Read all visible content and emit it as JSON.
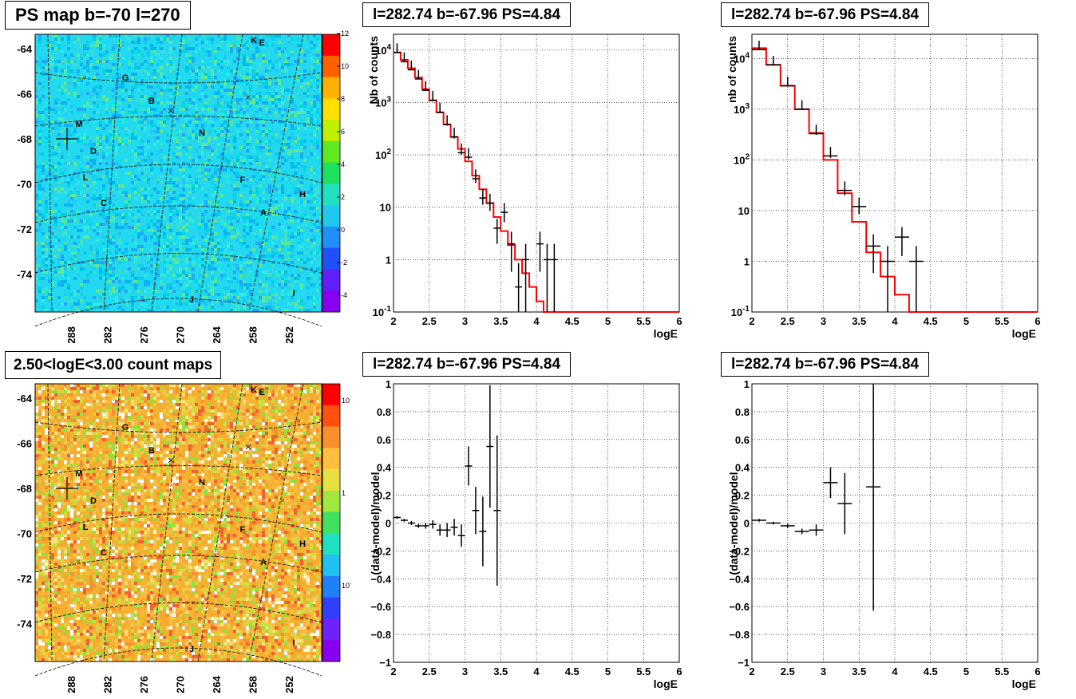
{
  "pads": {
    "map1_title": "PS map b=-70 l=270",
    "map2_title": "2.50<logE<3.00 count maps",
    "spec1_title": "l=282.74 b=-67.96 PS=4.84",
    "spec2_title": "l=282.74 b=-67.96 PS=4.84",
    "res1_title": "l=282.74 b=-67.96 PS=4.84",
    "res2_title": "l=282.74 b=-67.96 PS=4.84"
  },
  "maps": {
    "y_ticks": [
      "-64",
      "-66",
      "-68",
      "-70",
      "-72",
      "-74"
    ],
    "x_ticks": [
      "288",
      "282",
      "276",
      "270",
      "264",
      "258",
      "252"
    ],
    "markers": [
      "K",
      "E",
      "G",
      "B",
      "M",
      "N",
      "D",
      "L",
      "F",
      "H",
      "C",
      "A",
      "J",
      "I"
    ],
    "palette1_labels": [
      "12",
      "10",
      "8",
      "6",
      "4",
      "2",
      "0",
      "-2",
      "-4"
    ],
    "palette2_labels": [
      "10",
      "1",
      "10",
      "-1"
    ],
    "colors": {
      "map1_base": "#33e0f0",
      "map2_base": "#f5b030"
    }
  },
  "chart_data": [
    {
      "type": "line",
      "panel": "spectrum-1",
      "title": "l=282.74 b=-67.96 PS=4.84",
      "xlabel": "logE",
      "ylabel": "Nb of counts",
      "xlim": [
        2,
        6
      ],
      "ylim": [
        0.1,
        20000
      ],
      "log_y": true,
      "x_ticks": [
        "2",
        "2.5",
        "3",
        "3.5",
        "4",
        "4.5",
        "5",
        "5.5",
        "6"
      ],
      "y_ticks": [
        "10^-1",
        "1",
        "10",
        "10^2",
        "10^3",
        "10^4"
      ],
      "series": [
        {
          "name": "data",
          "color": "#000000",
          "x": [
            2.05,
            2.15,
            2.25,
            2.35,
            2.45,
            2.55,
            2.65,
            2.75,
            2.85,
            2.95,
            3.05,
            3.15,
            3.25,
            3.35,
            3.45,
            3.55,
            3.65,
            3.75,
            3.85,
            3.95,
            4.05,
            4.15,
            4.25
          ],
          "y": [
            9000,
            6000,
            4200,
            2800,
            1700,
            1100,
            650,
            380,
            220,
            110,
            90,
            35,
            15,
            12,
            4,
            8,
            2,
            0.3,
            1,
            0.1,
            2,
            1,
            1
          ]
        },
        {
          "name": "model",
          "color": "#ff0000",
          "step_x": [
            2.0,
            2.1,
            2.2,
            2.3,
            2.4,
            2.5,
            2.6,
            2.7,
            2.8,
            2.9,
            3.0,
            3.1,
            3.2,
            3.3,
            3.4,
            3.5,
            3.6,
            3.7,
            3.8,
            3.9,
            4.0,
            4.1,
            4.2,
            4.3,
            6.0
          ],
          "step_y": [
            9000,
            6500,
            4500,
            3000,
            1800,
            1100,
            650,
            380,
            220,
            130,
            75,
            40,
            22,
            12,
            6.5,
            3.5,
            1.9,
            1.0,
            0.55,
            0.3,
            0.16,
            0.1,
            0.1,
            0.1
          ]
        }
      ]
    },
    {
      "type": "line",
      "panel": "spectrum-2",
      "title": "l=282.74 b=-67.96 PS=4.84",
      "xlabel": "logE",
      "ylabel": "nb of counts",
      "xlim": [
        2,
        6
      ],
      "ylim": [
        0.1,
        30000
      ],
      "log_y": true,
      "x_ticks": [
        "2",
        "2.5",
        "3",
        "3.5",
        "4",
        "4.5",
        "5",
        "5.5",
        "6"
      ],
      "y_ticks": [
        "10^-1",
        "1",
        "10",
        "10^2",
        "10^3",
        "10^4"
      ],
      "series": [
        {
          "name": "data",
          "color": "#000000",
          "x": [
            2.1,
            2.3,
            2.5,
            2.7,
            2.9,
            3.1,
            3.3,
            3.5,
            3.7,
            3.9,
            4.1,
            4.3
          ],
          "y": [
            15000,
            7500,
            2900,
            1000,
            330,
            120,
            25,
            12,
            2,
            1,
            3,
            1
          ]
        },
        {
          "name": "model",
          "color": "#ff0000",
          "step_x": [
            2.0,
            2.2,
            2.4,
            2.6,
            2.8,
            3.0,
            3.2,
            3.4,
            3.6,
            3.8,
            4.0,
            4.2,
            4.4,
            6.0
          ],
          "step_y": [
            16000,
            7500,
            2900,
            1000,
            340,
            100,
            22,
            6,
            1.5,
            0.5,
            0.22,
            0.1,
            0.1
          ]
        }
      ]
    },
    {
      "type": "scatter",
      "panel": "residual-1",
      "title": "l=282.74 b=-67.96 PS=4.84",
      "xlabel": "logE",
      "ylabel": "(data-model)/model",
      "xlim": [
        2,
        6
      ],
      "ylim": [
        -1,
        1
      ],
      "x_ticks": [
        "2",
        "2.5",
        "3",
        "3.5",
        "4",
        "4.5",
        "5",
        "5.5",
        "6"
      ],
      "y_ticks": [
        "−1",
        "−0.8",
        "−0.6",
        "−0.4",
        "−0.2",
        "0",
        "0.2",
        "0.4",
        "0.6",
        "0.8",
        "1"
      ],
      "points": [
        {
          "x": 2.05,
          "y": 0.04,
          "err": 0.01
        },
        {
          "x": 2.15,
          "y": 0.02,
          "err": 0.01
        },
        {
          "x": 2.25,
          "y": 0.0,
          "err": 0.015
        },
        {
          "x": 2.35,
          "y": -0.02,
          "err": 0.015
        },
        {
          "x": 2.45,
          "y": -0.02,
          "err": 0.02
        },
        {
          "x": 2.55,
          "y": -0.01,
          "err": 0.03
        },
        {
          "x": 2.65,
          "y": -0.05,
          "err": 0.04
        },
        {
          "x": 2.75,
          "y": -0.05,
          "err": 0.05
        },
        {
          "x": 2.85,
          "y": -0.03,
          "err": 0.06
        },
        {
          "x": 2.95,
          "y": -0.09,
          "err": 0.08
        },
        {
          "x": 3.05,
          "y": 0.41,
          "err": 0.14
        },
        {
          "x": 3.15,
          "y": 0.09,
          "err": 0.17
        },
        {
          "x": 3.25,
          "y": -0.06,
          "err": 0.25
        },
        {
          "x": 3.35,
          "y": 0.55,
          "err": 0.44
        },
        {
          "x": 3.45,
          "y": 0.09,
          "err": 0.54
        }
      ]
    },
    {
      "type": "scatter",
      "panel": "residual-2",
      "title": "l=282.74 b=-67.96 PS=4.84",
      "xlabel": "logE",
      "ylabel": "(data-model)/model",
      "xlim": [
        2,
        6
      ],
      "ylim": [
        -1,
        1
      ],
      "x_ticks": [
        "2",
        "2.5",
        "3",
        "3.5",
        "4",
        "4.5",
        "5",
        "5.5",
        "6"
      ],
      "y_ticks": [
        "−1",
        "−0.8",
        "−0.6",
        "−0.4",
        "−0.2",
        "0",
        "0.2",
        "0.4",
        "0.6",
        "0.8",
        "1"
      ],
      "points": [
        {
          "x": 2.1,
          "y": 0.02,
          "err": 0.01
        },
        {
          "x": 2.3,
          "y": 0.0,
          "err": 0.01
        },
        {
          "x": 2.5,
          "y": -0.02,
          "err": 0.015
        },
        {
          "x": 2.7,
          "y": -0.06,
          "err": 0.02
        },
        {
          "x": 2.9,
          "y": -0.05,
          "err": 0.04
        },
        {
          "x": 3.1,
          "y": 0.29,
          "err": 0.11
        },
        {
          "x": 3.3,
          "y": 0.14,
          "err": 0.22
        },
        {
          "x": 3.7,
          "y": 0.26,
          "err": 0.89
        }
      ]
    }
  ]
}
